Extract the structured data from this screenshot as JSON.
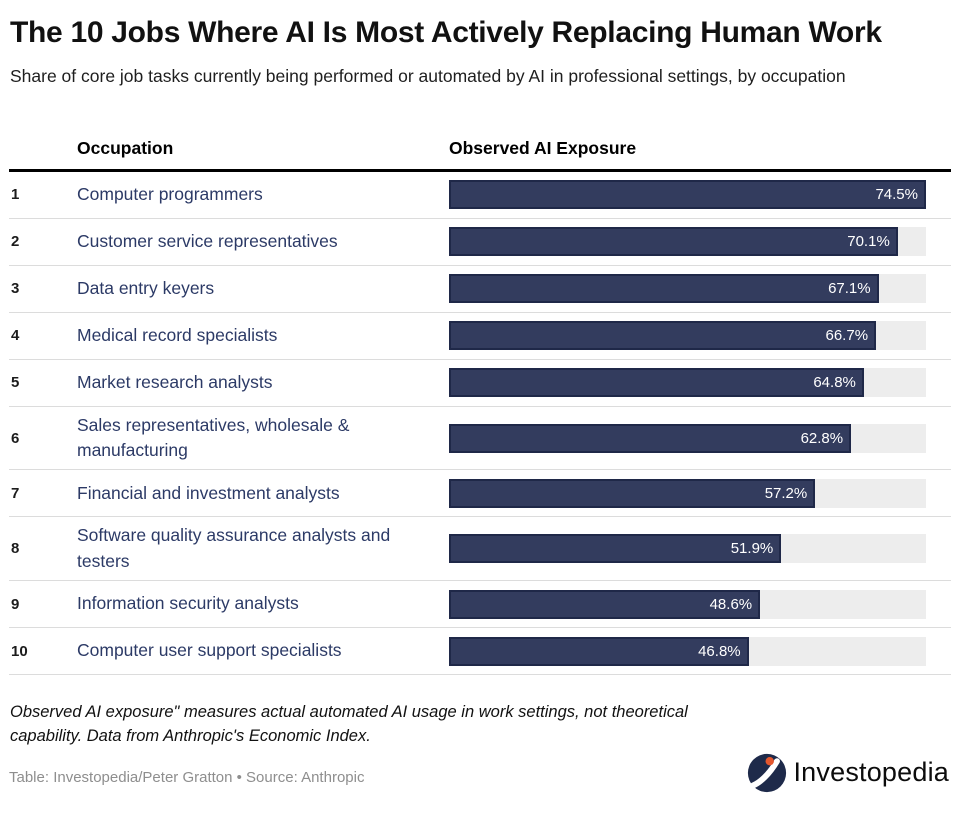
{
  "header": {
    "title": "The 10 Jobs Where AI Is Most Actively Replacing Human Work",
    "subtitle": "Share of core job tasks currently being performed or automated by AI in professional settings, by occupation"
  },
  "table": {
    "columns": [
      "Occupation",
      "Observed AI Exposure"
    ]
  },
  "chart_data": {
    "type": "bar",
    "title": "The 10 Jobs Where AI Is Most Actively Replacing Human Work",
    "subtitle": "Share of core job tasks currently being performed or automated by AI in professional settings, by occupation",
    "xlabel": "Observed AI Exposure",
    "ylabel": "Occupation",
    "orientation": "horizontal",
    "bar_scale_max": 74.5,
    "ranks": [
      1,
      2,
      3,
      4,
      5,
      6,
      7,
      8,
      9,
      10
    ],
    "categories": [
      "Computer programmers",
      "Customer service representatives",
      "Data entry keyers",
      "Medical record specialists",
      "Market research analysts",
      "Sales representatives, wholesale & manufacturing",
      "Financial and investment analysts",
      "Software quality assurance analysts and testers",
      "Information security analysts",
      "Computer user support specialists"
    ],
    "values": [
      74.5,
      70.1,
      67.1,
      66.7,
      64.8,
      62.8,
      57.2,
      51.9,
      48.6,
      46.8
    ],
    "value_labels": [
      "74.5%",
      "70.1%",
      "67.1%",
      "66.7%",
      "64.8%",
      "62.8%",
      "57.2%",
      "51.9%",
      "48.6%",
      "46.8%"
    ],
    "colors": {
      "bar_fill": "#333c5e",
      "bar_border": "#1f2848",
      "bar_track": "#ededed",
      "value_text": "#ffffff",
      "occupation_text": "#2c3a66"
    }
  },
  "footer": {
    "note": "Observed AI exposure\" measures actual automated AI usage in work settings, not theoretical capability. Data from Anthropic's Economic Index.",
    "credit": "Table: Investopedia/Peter Gratton • Source: Anthropic",
    "logo_text": "Investopedia",
    "logo_icon": "investopedia-i-circle-icon",
    "logo_colors": {
      "circle": "#1e2a4a",
      "swoosh": "#ffffff",
      "dot": "#e4572e"
    }
  }
}
